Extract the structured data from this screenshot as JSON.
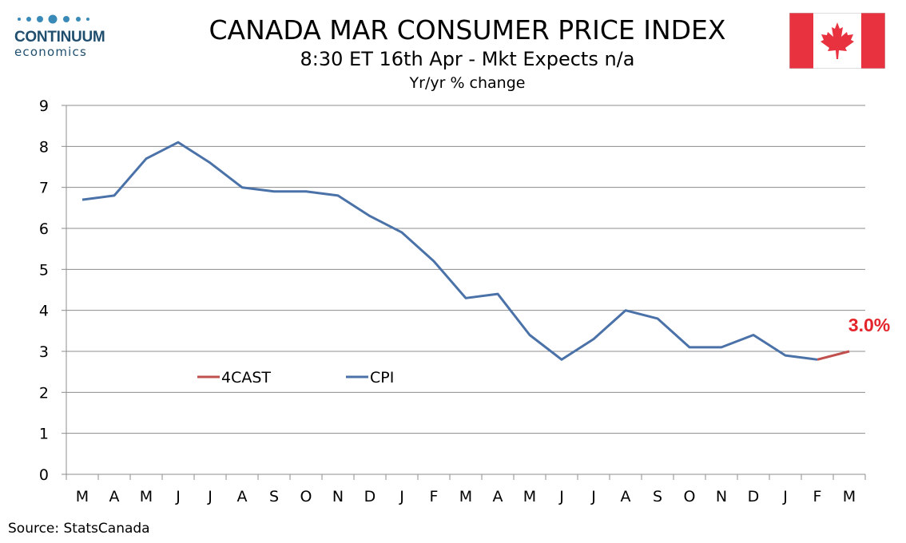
{
  "logo": {
    "word": "CONTINUUM",
    "sub": "economics"
  },
  "header": {
    "title": "CANADA MAR CONSUMER PRICE INDEX",
    "subtitle": "8:30 ET 16th Apr - Mkt Expects n/a",
    "unit": "Yr/yr % change"
  },
  "flag": {
    "icon": "canada-flag-icon",
    "red": "#e8323f",
    "white": "#ffffff"
  },
  "source": "Source: StatsCanada",
  "chart_data": {
    "type": "line",
    "categories": [
      "M",
      "A",
      "M",
      "J",
      "J",
      "A",
      "S",
      "O",
      "N",
      "D",
      "J",
      "F",
      "M",
      "A",
      "M",
      "J",
      "J",
      "A",
      "S",
      "O",
      "N",
      "D",
      "J",
      "F",
      "M"
    ],
    "ylim": [
      0,
      9
    ],
    "yticks": [
      "0",
      "1",
      "2",
      "3",
      "4",
      "5",
      "6",
      "7",
      "8",
      "9"
    ],
    "grid": true,
    "legend_placement": "lower-left inside plot",
    "series": [
      {
        "name": "4CAST",
        "color": "#c0504d",
        "values": [
          null,
          null,
          null,
          null,
          null,
          null,
          null,
          null,
          null,
          null,
          null,
          null,
          null,
          null,
          null,
          null,
          null,
          null,
          null,
          null,
          null,
          null,
          null,
          2.8,
          3.0
        ]
      },
      {
        "name": "CPI",
        "color": "#4a72a8",
        "values": [
          6.7,
          6.8,
          7.7,
          8.1,
          7.6,
          7.0,
          6.9,
          6.9,
          6.8,
          6.3,
          5.9,
          5.2,
          4.3,
          4.4,
          3.4,
          2.8,
          3.3,
          4.0,
          3.8,
          3.1,
          3.1,
          3.4,
          2.9,
          2.8,
          null
        ]
      }
    ],
    "annotation": {
      "text": "3.0%",
      "color": "#e3242b"
    }
  }
}
